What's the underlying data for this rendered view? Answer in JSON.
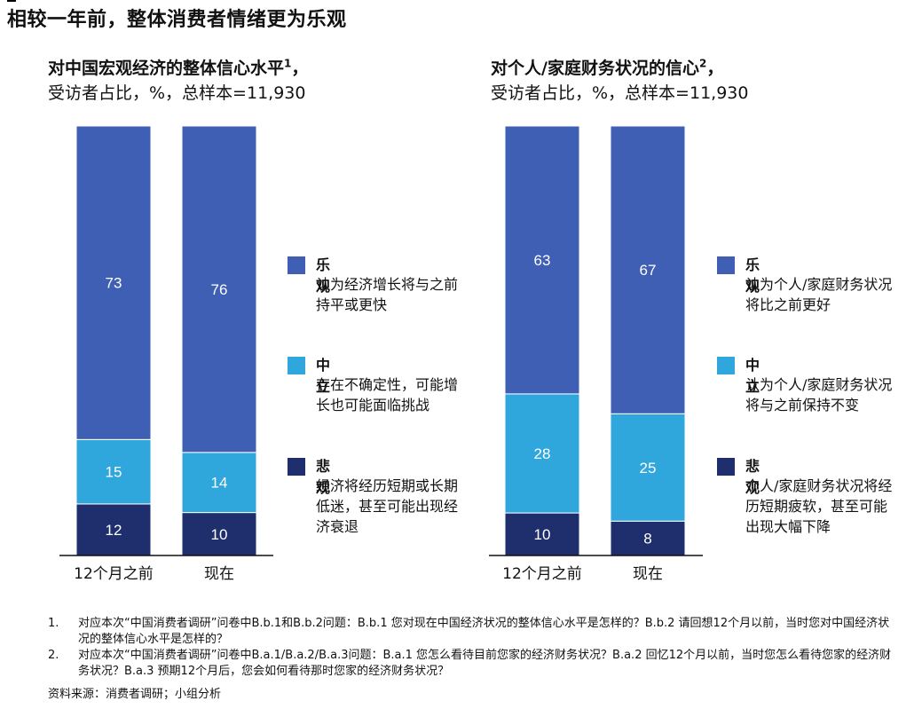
{
  "title": "相较一年前，整体消费者情绪更为乐观",
  "panels": [
    {
      "title": "对中国宏观经济的整体信心水平",
      "title_sup": "1",
      "title_suffix": "，",
      "subtitle": "受访者占比，%，总样本=11,930"
    },
    {
      "title": "对个人/家庭财务状况的信心",
      "title_sup": "2",
      "title_suffix": "，",
      "subtitle": "受访者占比，%，总样本=11,930"
    }
  ],
  "legends": [
    [
      {
        "label": "乐观",
        "desc": "认为经济增长将与之前持平或更快"
      },
      {
        "label": "中立",
        "desc": "存在不确定性，可能增长也可能面临挑战"
      },
      {
        "label": "悲观",
        "desc": "经济将经历短期或长期低迷，甚至可能出现经济衰退"
      }
    ],
    [
      {
        "label": "乐观",
        "desc": "认为个人/家庭财务状况将比之前更好"
      },
      {
        "label": "中立",
        "desc": "认为个人/家庭财务状况将与之前保持不变"
      },
      {
        "label": "悲观",
        "desc": "个人/家庭财务状况将经历短期疲软，甚至可能出现大幅下降"
      }
    ]
  ],
  "colors": {
    "optimistic": "#3f5fb5",
    "neutral": "#2fa6dc",
    "pessimistic": "#1f2f6e",
    "axis": "#111111"
  },
  "chart_data": [
    {
      "type": "bar",
      "stacked": true,
      "title": "对中国宏观经济的整体信心水平",
      "categories": [
        "12个月之前",
        "现在"
      ],
      "series": [
        {
          "name": "悲观",
          "values": [
            12,
            10
          ]
        },
        {
          "name": "中立",
          "values": [
            15,
            14
          ]
        },
        {
          "name": "乐观",
          "values": [
            73,
            76
          ]
        }
      ],
      "ylim": [
        0,
        100
      ],
      "grid": false,
      "legend": "right"
    },
    {
      "type": "bar",
      "stacked": true,
      "title": "对个人/家庭财务状况的信心",
      "categories": [
        "12个月之前",
        "现在"
      ],
      "series": [
        {
          "name": "悲观",
          "values": [
            10,
            8
          ]
        },
        {
          "name": "中立",
          "values": [
            28,
            25
          ]
        },
        {
          "name": "乐观",
          "values": [
            63,
            67
          ]
        }
      ],
      "ylim": [
        0,
        100
      ],
      "grid": false,
      "legend": "right"
    }
  ],
  "notes": [
    {
      "num": "1.",
      "text": "对应本次“中国消费者调研”问卷中B.b.1和B.b.2问题：B.b.1 您对现在中国经济状况的整体信心水平是怎样的？B.b.2 请回想12个月以前，当时您对中国经济状况的整体信心水平是怎样的？"
    },
    {
      "num": "2.",
      "text": "对应本次“中国消费者调研”问卷中B.a.1/B.a.2/B.a.3问题：B.a.1 您怎么看待目前您家的经济财务状况？B.a.2 回忆12个月以前，当时您怎么看待您家的经济财务状况？B.a.3 预期12个月后，您会如何看待那时您家的经济财务状况？"
    }
  ],
  "source": "资料来源：消费者调研；小组分析"
}
